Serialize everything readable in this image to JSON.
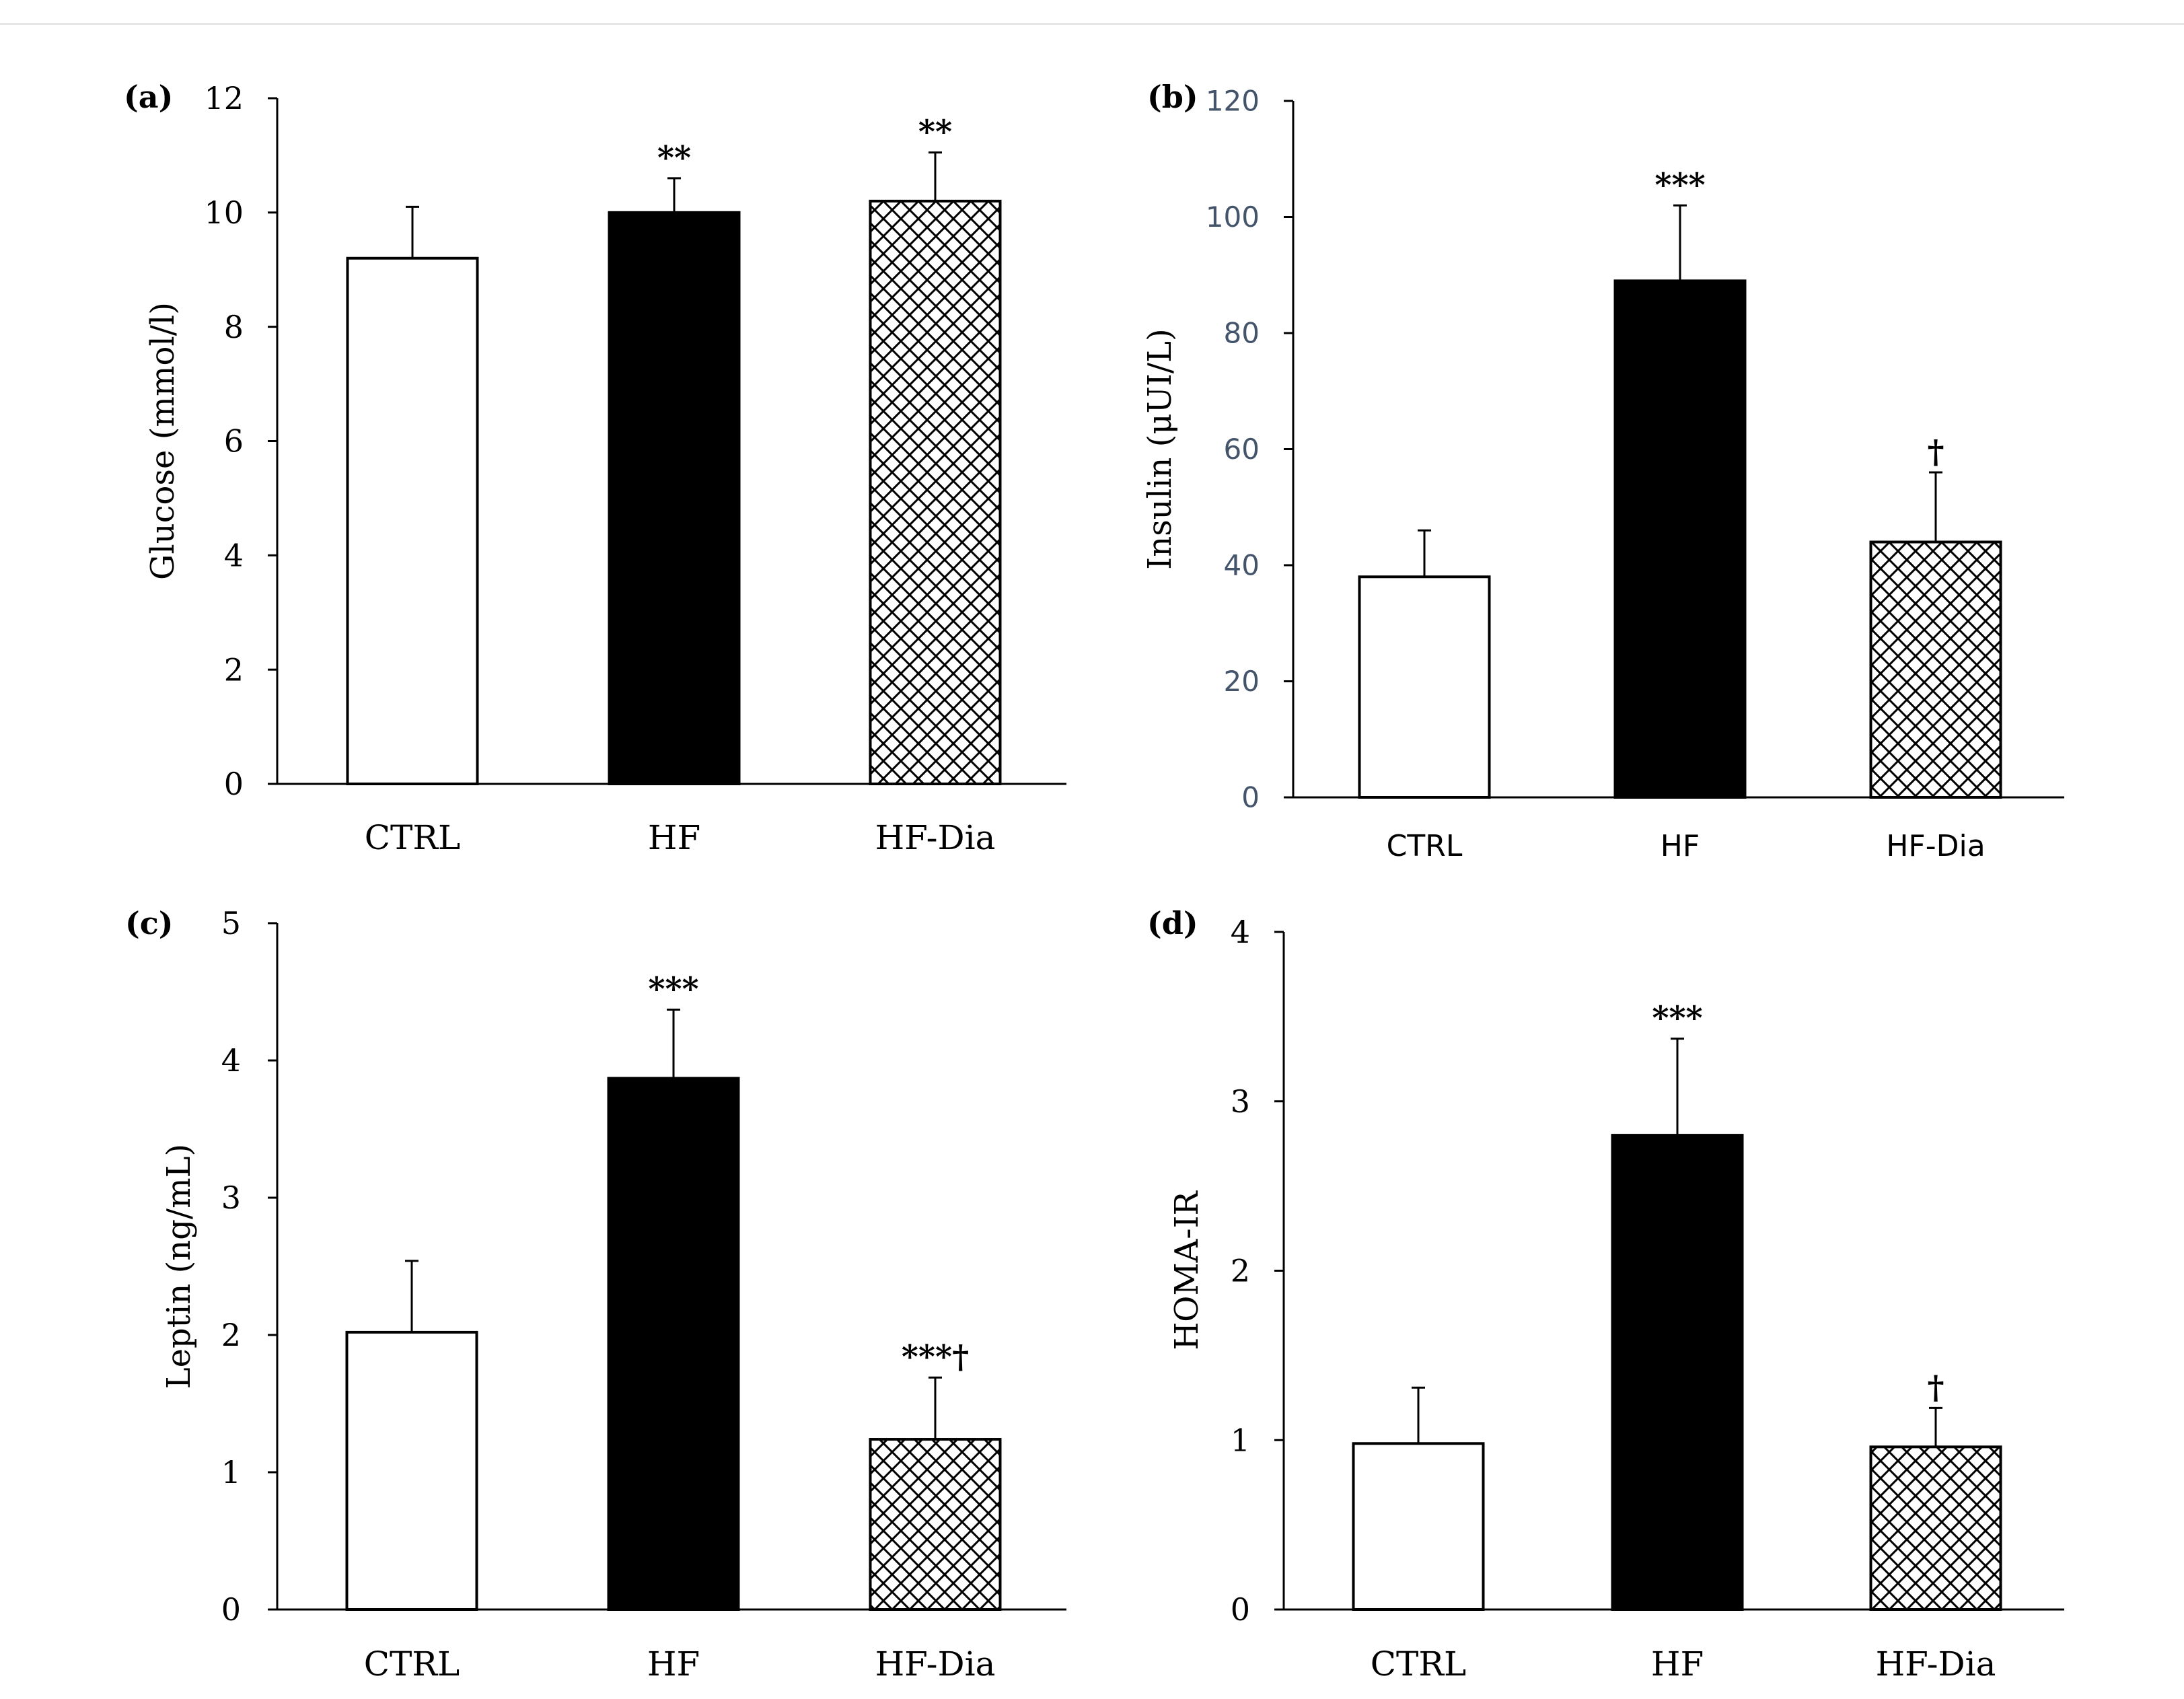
{
  "figure": {
    "categories": [
      "CTRL",
      "HF",
      "HF-Dia"
    ],
    "colors": {
      "axis": "#000000",
      "ctrl_fill": "#ffffff",
      "hf_fill": "#000000",
      "hatch": "#000000",
      "tick_slate": "#44546a"
    }
  },
  "chart_data": [
    {
      "panel": "(a)",
      "type": "bar",
      "categories": [
        "CTRL",
        "HF",
        "HF-Dia"
      ],
      "values": [
        9.2,
        10.0,
        10.2
      ],
      "errors": [
        0.9,
        0.6,
        0.85
      ],
      "significance": [
        "",
        "**",
        "**"
      ],
      "ylabel": "Glucose  (mmol/l)",
      "ylim": [
        0,
        12
      ],
      "yticks": [
        0,
        2,
        4,
        6,
        8,
        10,
        12
      ],
      "tick_style": "serif"
    },
    {
      "panel": "(b)",
      "type": "bar",
      "categories": [
        "CTRL",
        "HF",
        "HF-Dia"
      ],
      "values": [
        38,
        89,
        44
      ],
      "errors": [
        8,
        13,
        12
      ],
      "significance": [
        "",
        "***",
        "†"
      ],
      "ylabel": "Insulin (μUI/L)",
      "ylim": [
        0,
        120
      ],
      "yticks": [
        0,
        20,
        40,
        60,
        80,
        100,
        120
      ],
      "tick_style": "sans"
    },
    {
      "panel": "(c)",
      "type": "bar",
      "categories": [
        "CTRL",
        "HF",
        "HF-Dia"
      ],
      "values": [
        2.02,
        3.87,
        1.24
      ],
      "errors": [
        0.52,
        0.5,
        0.45
      ],
      "significance": [
        "",
        "***",
        "***†"
      ],
      "ylabel": "Leptin (ng/mL)",
      "ylim": [
        0,
        5
      ],
      "yticks": [
        0,
        1,
        2,
        3,
        4,
        5
      ],
      "tick_style": "serif"
    },
    {
      "panel": "(d)",
      "type": "bar",
      "categories": [
        "CTRL",
        "HF",
        "HF-Dia"
      ],
      "values": [
        0.98,
        2.8,
        0.96
      ],
      "errors": [
        0.33,
        0.57,
        0.23
      ],
      "significance": [
        "",
        "***",
        "†"
      ],
      "ylabel": "HOMA-IR",
      "ylim": [
        0,
        4
      ],
      "yticks": [
        0,
        1,
        2,
        3,
        4
      ],
      "tick_style": "serif"
    }
  ]
}
